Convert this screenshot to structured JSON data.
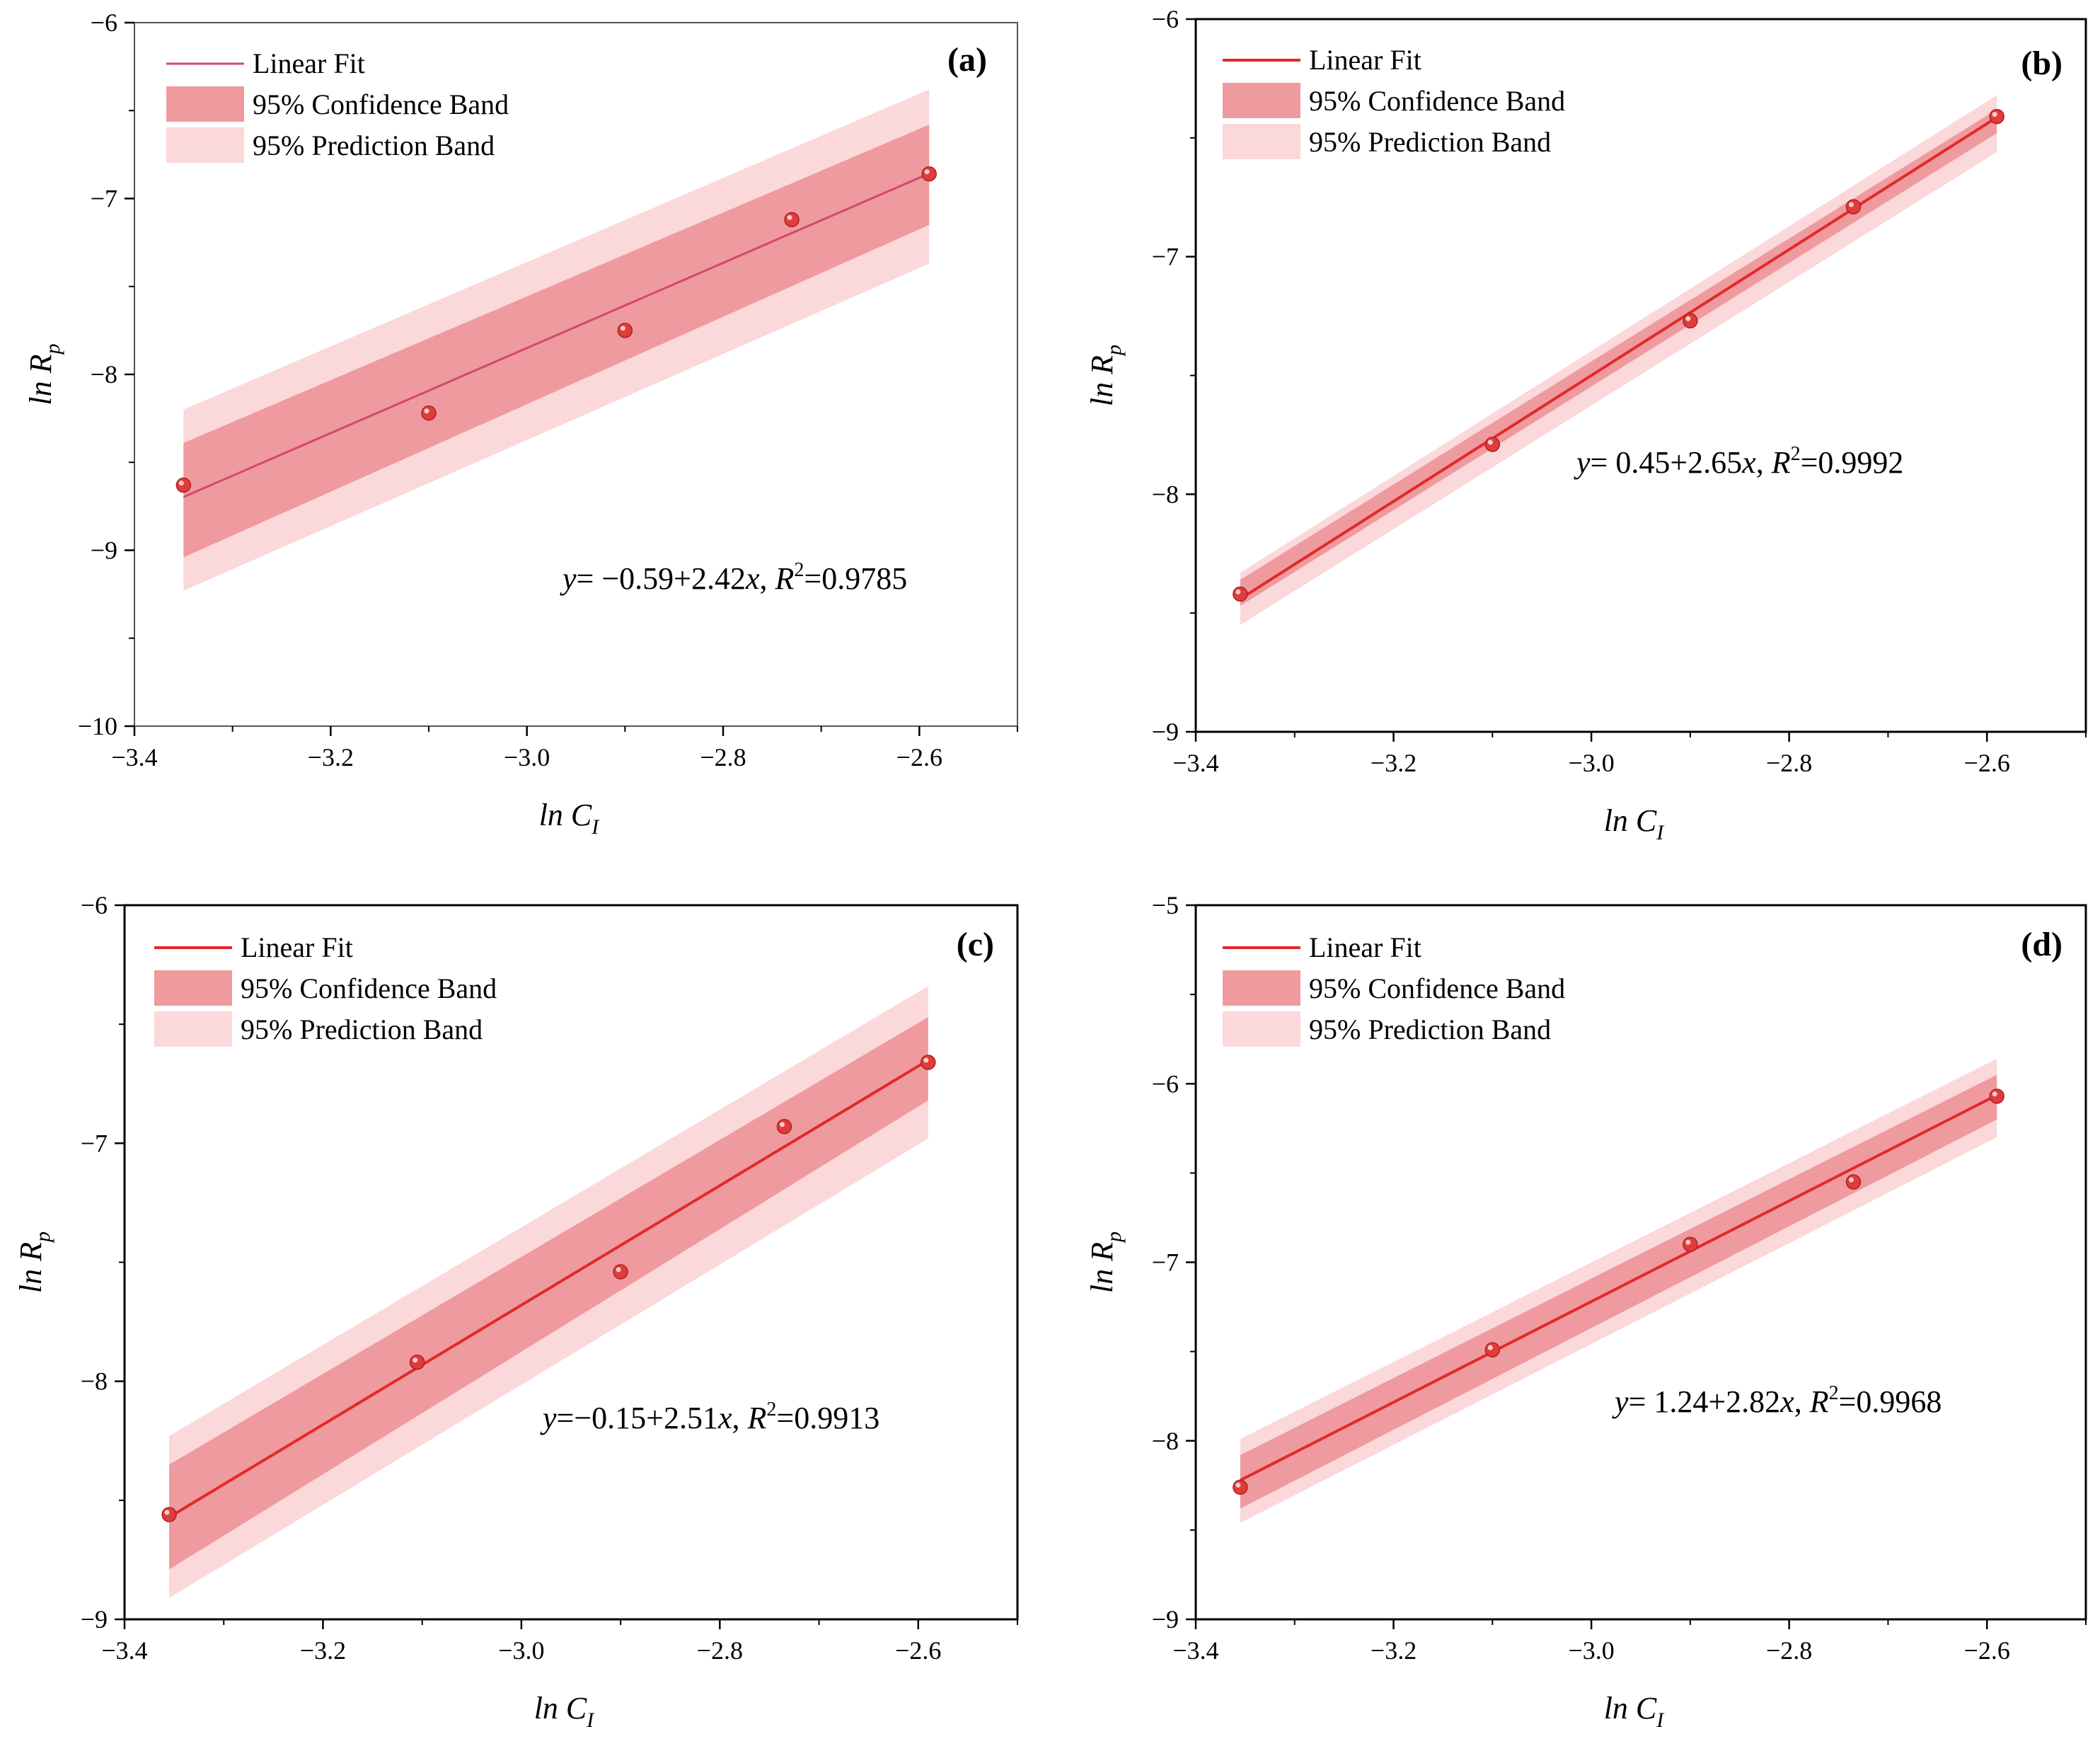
{
  "figure": {
    "colors": {
      "line": "#e02a2a",
      "line_a": "#d4486a",
      "confidence": "#ef9a9e",
      "prediction": "#fbd8da",
      "point": "#e03c3c",
      "axis": "#000000"
    }
  },
  "chart_data": [
    {
      "type": "scatter",
      "panel_label": "(a)",
      "legend": [
        "Linear Fit",
        "95% Confidence Band",
        "95% Prediction Band"
      ],
      "xlabel": "ln C",
      "xlabel_sub": "I",
      "ylabel": "ln R",
      "ylabel_sub": "p",
      "xlim": [
        -3.4,
        -2.5
      ],
      "ylim": [
        -10,
        -6
      ],
      "xticks": [
        -3.4,
        -3.2,
        -3.0,
        -2.8,
        -2.6
      ],
      "xtick_labels": [
        "−3.4",
        "−3.2",
        "−3.0",
        "−2.8",
        "−2.6"
      ],
      "yticks": [
        -10,
        -9,
        -8,
        -7,
        -6
      ],
      "ytick_labels": [
        "−10",
        "−9",
        "−8",
        "−7",
        "−6"
      ],
      "x": [
        -3.35,
        -3.1,
        -2.9,
        -2.73,
        -2.59
      ],
      "y": [
        -8.63,
        -8.22,
        -7.75,
        -7.12,
        -6.86
      ],
      "fit": {
        "intercept": -0.59,
        "slope": 2.42
      },
      "band": {
        "x": [
          -3.35,
          -2.59
        ],
        "conf_lower": [
          -9.04,
          -7.15
        ],
        "conf_upper": [
          -8.39,
          -6.58
        ],
        "pred_lower": [
          -9.23,
          -7.37
        ],
        "pred_upper": [
          -8.2,
          -6.38
        ]
      },
      "equation": {
        "y": "y",
        "mid": "= −0.59+2.42",
        "x": "x",
        "r": ", R",
        "sup": "2",
        "val": "=0.9785"
      }
    },
    {
      "type": "scatter",
      "panel_label": "(b)",
      "legend": [
        "Linear Fit",
        "95% Confidence Band",
        "95% Prediction Band"
      ],
      "xlabel": "ln C",
      "xlabel_sub": "I",
      "ylabel": "ln R",
      "ylabel_sub": "p",
      "xlim": [
        -3.4,
        -2.5
      ],
      "ylim": [
        -9,
        -6
      ],
      "xticks": [
        -3.4,
        -3.2,
        -3.0,
        -2.8,
        -2.6
      ],
      "xtick_labels": [
        "−3.4",
        "−3.2",
        "−3.0",
        "−2.8",
        "−2.6"
      ],
      "yticks": [
        -9,
        -8,
        -7,
        -6
      ],
      "ytick_labels": [
        "−9",
        "−8",
        "−7",
        "−6"
      ],
      "x": [
        -3.355,
        -3.1,
        -2.9,
        -2.735,
        -2.59
      ],
      "y": [
        -8.42,
        -7.79,
        -7.27,
        -6.79,
        -6.41
      ],
      "fit": {
        "intercept": 0.45,
        "slope": 2.65
      },
      "band": {
        "x": [
          -3.355,
          -2.59
        ],
        "conf_lower": [
          -8.47,
          -6.48
        ],
        "conf_upper": [
          -8.36,
          -6.38
        ],
        "pred_lower": [
          -8.55,
          -6.56
        ],
        "pred_upper": [
          -8.33,
          -6.32
        ]
      },
      "equation": {
        "y": "y",
        "mid": "= 0.45+2.65",
        "x": "x",
        "r": ", R",
        "sup": "2",
        "val": "=0.9992"
      }
    },
    {
      "type": "scatter",
      "panel_label": "(c)",
      "legend": [
        "Linear Fit",
        "95% Confidence Band",
        "95% Prediction Band"
      ],
      "xlabel": "ln C",
      "xlabel_sub": "I",
      "ylabel": "ln R",
      "ylabel_sub": "p",
      "xlim": [
        -3.4,
        -2.5
      ],
      "ylim": [
        -9,
        -6
      ],
      "xticks": [
        -3.4,
        -3.2,
        -3.0,
        -2.8,
        -2.6
      ],
      "xtick_labels": [
        "−3.4",
        "−3.2",
        "−3.0",
        "−2.8",
        "−2.6"
      ],
      "yticks": [
        -9,
        -8,
        -7,
        -6
      ],
      "ytick_labels": [
        "−9",
        "−8",
        "−7",
        "−6"
      ],
      "x": [
        -3.355,
        -3.105,
        -2.9,
        -2.735,
        -2.59
      ],
      "y": [
        -8.56,
        -7.92,
        -7.54,
        -6.93,
        -6.66
      ],
      "fit": {
        "intercept": -0.15,
        "slope": 2.51
      },
      "band": {
        "x": [
          -3.355,
          -2.59
        ],
        "conf_lower": [
          -8.79,
          -6.82
        ],
        "conf_upper": [
          -8.35,
          -6.47
        ],
        "pred_lower": [
          -8.91,
          -6.98
        ],
        "pred_upper": [
          -8.23,
          -6.34
        ]
      },
      "equation": {
        "y": "y",
        "mid": "=−0.15+2.51",
        "x": "x",
        "r": ", R",
        "sup": "2",
        "val": "=0.9913"
      }
    },
    {
      "type": "scatter",
      "panel_label": "(d)",
      "legend": [
        "Linear Fit",
        "95% Confidence Band",
        "95% Prediction Band"
      ],
      "xlabel": "ln C",
      "xlabel_sub": "I",
      "ylabel": "ln R",
      "ylabel_sub": "p",
      "xlim": [
        -3.4,
        -2.5
      ],
      "ylim": [
        -9,
        -5
      ],
      "xticks": [
        -3.4,
        -3.2,
        -3.0,
        -2.8,
        -2.6
      ],
      "xtick_labels": [
        "−3.4",
        "−3.2",
        "−3.0",
        "−2.8",
        "−2.6"
      ],
      "yticks": [
        -9,
        -8,
        -7,
        -6,
        -5
      ],
      "ytick_labels": [
        "−9",
        "−8",
        "−7",
        "−6",
        "−5"
      ],
      "x": [
        -3.355,
        -3.1,
        -2.9,
        -2.735,
        -2.59
      ],
      "y": [
        -8.26,
        -7.49,
        -6.9,
        -6.55,
        -6.07
      ],
      "fit": {
        "intercept": 1.24,
        "slope": 2.82
      },
      "band": {
        "x": [
          -3.355,
          -2.59
        ],
        "conf_lower": [
          -8.38,
          -6.2
        ],
        "conf_upper": [
          -8.08,
          -5.95
        ],
        "pred_lower": [
          -8.46,
          -6.3
        ],
        "pred_upper": [
          -7.99,
          -5.86
        ]
      },
      "equation": {
        "y": "y",
        "mid": "= 1.24+2.82",
        "x": "x",
        "r": ", R",
        "sup": "2",
        "val": "=0.9968"
      }
    }
  ]
}
